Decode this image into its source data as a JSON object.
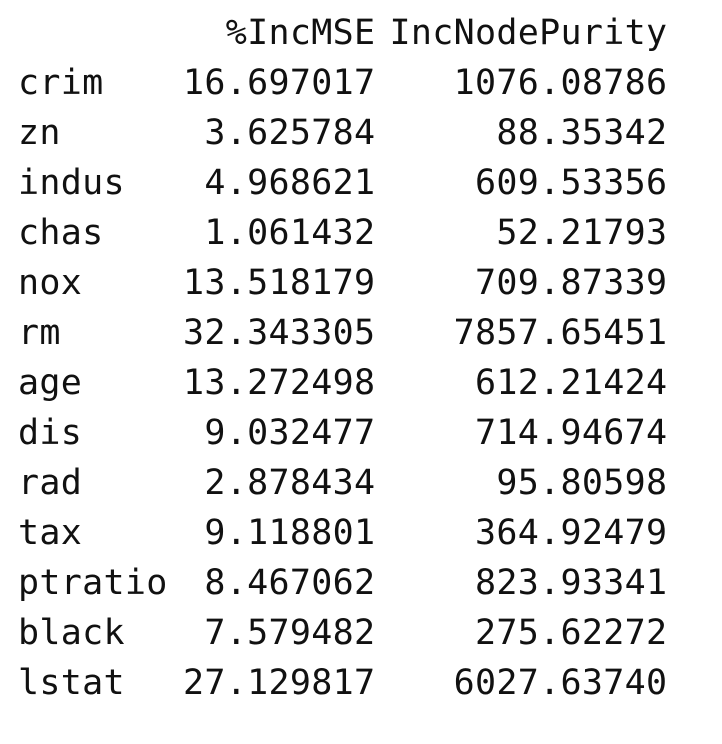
{
  "table": {
    "columns": [
      "%IncMSE",
      "IncNodePurity"
    ],
    "rows": [
      {
        "name": "crim",
        "inc_mse": "16.697017",
        "inc_node_purity": "1076.08786"
      },
      {
        "name": "zn",
        "inc_mse": "3.625784",
        "inc_node_purity": "88.35342"
      },
      {
        "name": "indus",
        "inc_mse": "4.968621",
        "inc_node_purity": "609.53356"
      },
      {
        "name": "chas",
        "inc_mse": "1.061432",
        "inc_node_purity": "52.21793"
      },
      {
        "name": "nox",
        "inc_mse": "13.518179",
        "inc_node_purity": "709.87339"
      },
      {
        "name": "rm",
        "inc_mse": "32.343305",
        "inc_node_purity": "7857.65451"
      },
      {
        "name": "age",
        "inc_mse": "13.272498",
        "inc_node_purity": "612.21424"
      },
      {
        "name": "dis",
        "inc_mse": "9.032477",
        "inc_node_purity": "714.94674"
      },
      {
        "name": "rad",
        "inc_mse": "2.878434",
        "inc_node_purity": "95.80598"
      },
      {
        "name": "tax",
        "inc_mse": "9.118801",
        "inc_node_purity": "364.92479"
      },
      {
        "name": "ptratio",
        "inc_mse": "8.467062",
        "inc_node_purity": "823.93341"
      },
      {
        "name": "black",
        "inc_mse": "7.579482",
        "inc_node_purity": "275.62272"
      },
      {
        "name": "lstat",
        "inc_mse": "27.129817",
        "inc_node_purity": "6027.63740"
      }
    ]
  }
}
